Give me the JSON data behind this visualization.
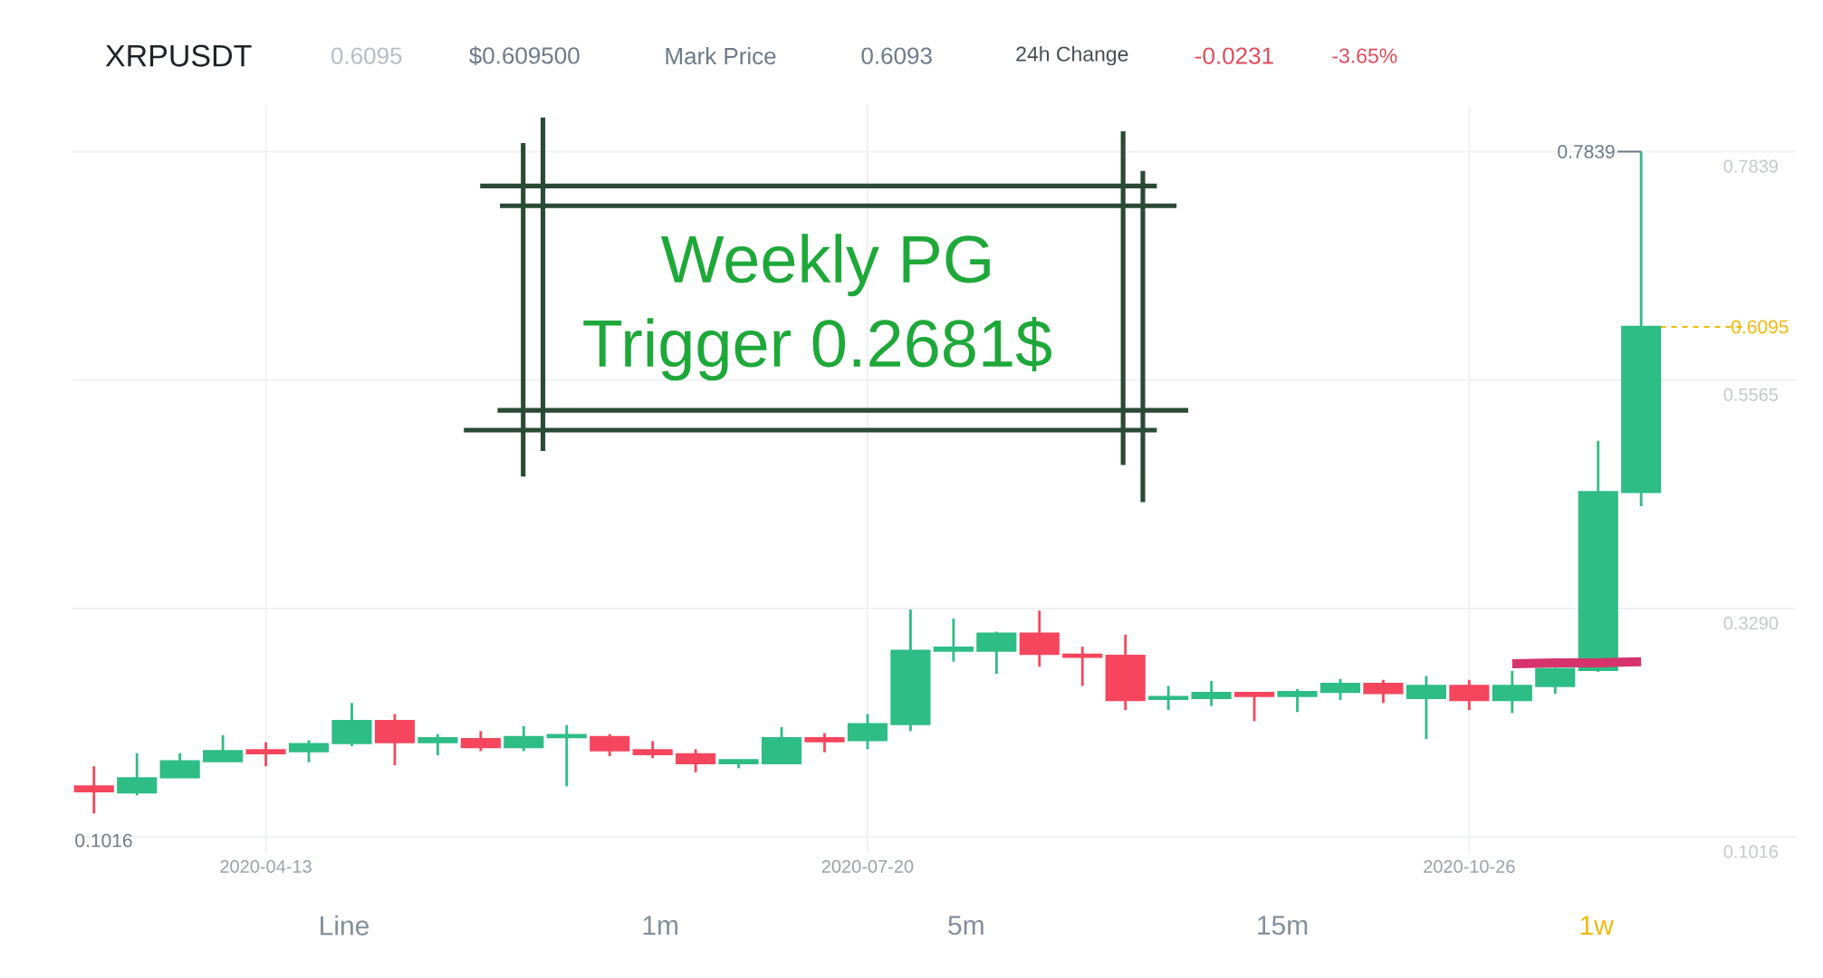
{
  "chart_data": {
    "type": "candlestick",
    "title": "XRPUSDT",
    "categories": [
      null,
      null,
      null,
      null,
      "2020-04-13",
      null,
      null,
      null,
      null,
      null,
      null,
      null,
      null,
      null,
      null,
      null,
      null,
      null,
      "2020-07-20",
      null,
      null,
      null,
      null,
      null,
      null,
      null,
      null,
      null,
      null,
      null,
      null,
      null,
      "2020-10-26",
      null,
      null,
      null,
      null
    ],
    "ohlc": [
      [
        0.152,
        0.172,
        0.125,
        0.147
      ],
      [
        0.146,
        0.185,
        0.143,
        0.16
      ],
      [
        0.161,
        0.185,
        0.161,
        0.177
      ],
      [
        0.177,
        0.203,
        0.177,
        0.187
      ],
      [
        0.188,
        0.196,
        0.172,
        0.185
      ],
      [
        0.187,
        0.198,
        0.176,
        0.194
      ],
      [
        0.195,
        0.235,
        0.192,
        0.217
      ],
      [
        0.217,
        0.224,
        0.173,
        0.196
      ],
      [
        0.196,
        0.204,
        0.183,
        0.2
      ],
      [
        0.199,
        0.207,
        0.187,
        0.191
      ],
      [
        0.191,
        0.212,
        0.187,
        0.201
      ],
      [
        0.201,
        0.213,
        0.152,
        0.203
      ],
      [
        0.201,
        0.204,
        0.182,
        0.188
      ],
      [
        0.188,
        0.197,
        0.18,
        0.184
      ],
      [
        0.184,
        0.189,
        0.166,
        0.175
      ],
      [
        0.175,
        0.178,
        0.17,
        0.178
      ],
      [
        0.175,
        0.211,
        0.175,
        0.2
      ],
      [
        0.2,
        0.205,
        0.186,
        0.197
      ],
      [
        0.198,
        0.224,
        0.189,
        0.214
      ],
      [
        0.214,
        0.328,
        0.207,
        0.287
      ],
      [
        0.287,
        0.319,
        0.276,
        0.29
      ],
      [
        0.287,
        0.306,
        0.264,
        0.304
      ],
      [
        0.304,
        0.327,
        0.271,
        0.284
      ],
      [
        0.283,
        0.291,
        0.252,
        0.281
      ],
      [
        0.282,
        0.303,
        0.228,
        0.238
      ],
      [
        0.239,
        0.252,
        0.228,
        0.241
      ],
      [
        0.24,
        0.257,
        0.232,
        0.245
      ],
      [
        0.245,
        0.245,
        0.217,
        0.242
      ],
      [
        0.242,
        0.249,
        0.226,
        0.246
      ],
      [
        0.246,
        0.259,
        0.238,
        0.254
      ],
      [
        0.254,
        0.258,
        0.235,
        0.245
      ],
      [
        0.24,
        0.262,
        0.199,
        0.252
      ],
      [
        0.252,
        0.258,
        0.228,
        0.238
      ],
      [
        0.238,
        0.267,
        0.225,
        0.252
      ],
      [
        0.252,
        0.27,
        0.244,
        0.269
      ],
      [
        0.268,
        0.496,
        0.266,
        0.445
      ],
      [
        0.445,
        0.7839,
        0.431,
        0.6095
      ]
    ],
    "colors": [
      "#f6465d",
      "#2ebd85",
      "#2ebd85",
      "#2ebd85",
      "#f6465d",
      "#2ebd85",
      "#2ebd85",
      "#f6465d",
      "#2ebd85",
      "#f6465d",
      "#2ebd85",
      "#2ebd85",
      "#f6465d",
      "#f6465d",
      "#f6465d",
      "#2ebd85",
      "#2ebd85",
      "#f6465d",
      "#2ebd85",
      "#2ebd85",
      "#2ebd85",
      "#2ebd85",
      "#f6465d",
      "#f6465d",
      "#f6465d",
      "#2ebd85",
      "#2ebd85",
      "#f6465d",
      "#2ebd85",
      "#2ebd85",
      "#f6465d",
      "#2ebd85",
      "#f6465d",
      "#2ebd85",
      "#2ebd85",
      "#2ebd85",
      "#2ebd85"
    ],
    "series": [
      {
        "type": "line",
        "color": "#d6336c",
        "values": [
          null,
          null,
          null,
          null,
          null,
          null,
          null,
          null,
          null,
          null,
          null,
          null,
          null,
          null,
          null,
          null,
          null,
          null,
          null,
          null,
          null,
          null,
          null,
          null,
          null,
          null,
          null,
          null,
          null,
          null,
          null,
          null,
          null,
          0.274,
          0.275,
          0.275,
          0.276
        ]
      }
    ],
    "ylim": [
      0.085,
      0.83
    ],
    "yticks": [
      0.1016,
      {
        "value": 0.329,
        "label": "0.3290"
      },
      0.5565,
      0.7839
    ],
    "grid": true,
    "marker": "none",
    "ref_lines": [
      {
        "axis": "y",
        "value": 0.6095,
        "label": "0.6095",
        "color": "#f0b90b",
        "line_style": "dashed"
      }
    ],
    "annotations": [
      "0.6095",
      "$0.609500",
      "Mark Price",
      "0.6093",
      "24h Change",
      "-0.0231",
      "-3.65%",
      "Weekly PG",
      "Trigger 0.2681$",
      "0.7839",
      "0.1016",
      "Line",
      "1m",
      "5m",
      "15m",
      "1w"
    ]
  }
}
